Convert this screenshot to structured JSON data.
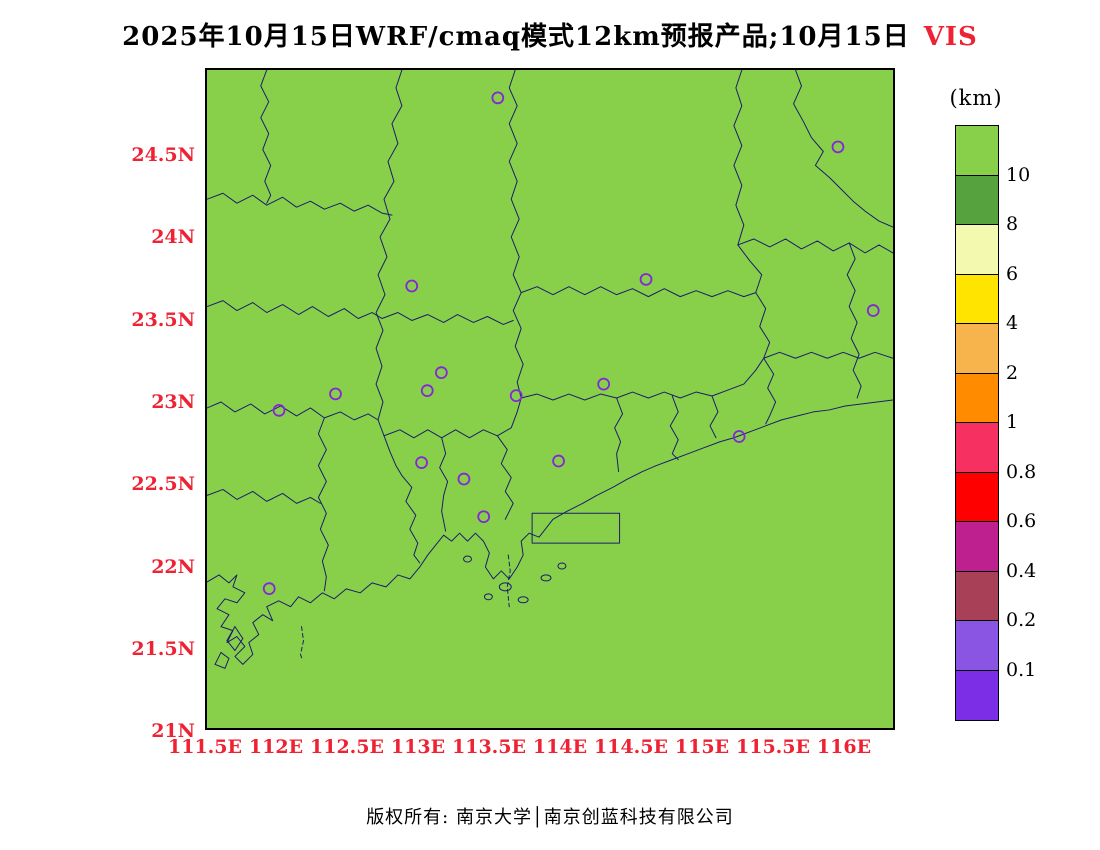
{
  "theme": {
    "red": "#ee2233",
    "map_green": "#88d04a",
    "boundary": "#1c1c6e",
    "marker_purple": "#8426d9"
  },
  "title": {
    "text_black": "2025年10月15日WRF/cmaq模式12km预报产品;10月15日",
    "text_red": "VIS"
  },
  "map": {
    "x_tick_labels": [
      "111.5E",
      "112E",
      "112.5E",
      "113E",
      "113.5E",
      "114E",
      "114.5E",
      "115E",
      "115.5E",
      "116E"
    ],
    "y_tick_labels": [
      "24.5N",
      "24N",
      "23.5N",
      "23N",
      "22.5N",
      "22N",
      "21.5N",
      "21N"
    ],
    "extent": {
      "lon_min": 111.5,
      "lon_max": 116.36,
      "lat_min": 21.0,
      "lat_max": 25.03
    },
    "field_value_note": "visibility above 10 km everywhere (uniform green fill)",
    "city_markers": [
      {
        "lon": 113.56,
        "lat": 24.86
      },
      {
        "lon": 115.97,
        "lat": 24.56
      },
      {
        "lon": 112.95,
        "lat": 23.71
      },
      {
        "lon": 114.61,
        "lat": 23.75
      },
      {
        "lon": 116.22,
        "lat": 23.56
      },
      {
        "lon": 113.16,
        "lat": 23.18
      },
      {
        "lon": 112.41,
        "lat": 23.05
      },
      {
        "lon": 113.06,
        "lat": 23.07
      },
      {
        "lon": 113.69,
        "lat": 23.04
      },
      {
        "lon": 114.31,
        "lat": 23.11
      },
      {
        "lon": 112.01,
        "lat": 22.95
      },
      {
        "lon": 115.27,
        "lat": 22.79
      },
      {
        "lon": 113.02,
        "lat": 22.63
      },
      {
        "lon": 113.99,
        "lat": 22.64
      },
      {
        "lon": 113.32,
        "lat": 22.53
      },
      {
        "lon": 113.46,
        "lat": 22.3
      },
      {
        "lon": 111.94,
        "lat": 21.86
      }
    ]
  },
  "colorbar": {
    "title": "(km)",
    "tick_labels": [
      "10",
      "8",
      "6",
      "4",
      "2",
      "1",
      "0.8",
      "0.6",
      "0.4",
      "0.2",
      "0.1"
    ],
    "colors_top_to_bottom": [
      "#88d04a",
      "#55a23e",
      "#f3fab0",
      "#ffe400",
      "#f8b44c",
      "#ff8c00",
      "#f63060",
      "#ff0000",
      "#bf2090",
      "#a84058",
      "#8a55e2",
      "#7b2ee6"
    ]
  },
  "footer": {
    "text": "版权所有: 南京大学│南京创蓝科技有限公司"
  }
}
